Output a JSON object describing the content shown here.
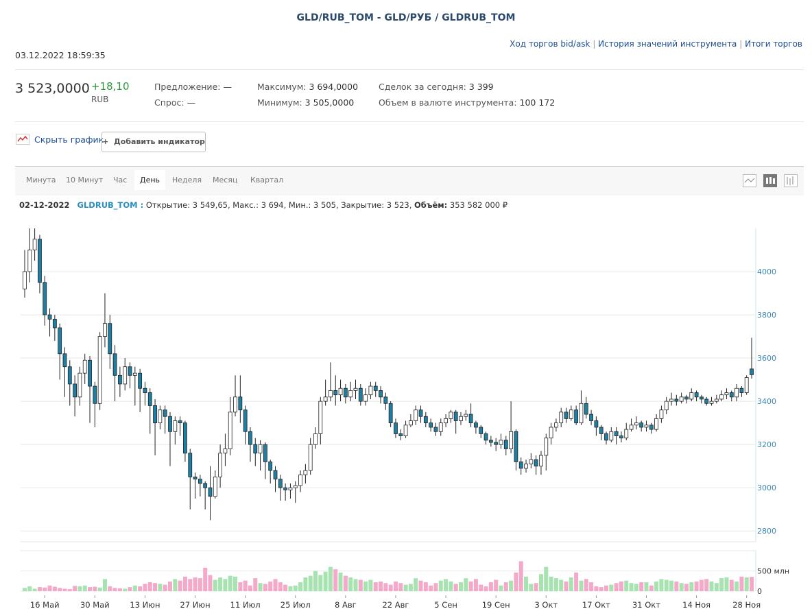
{
  "header": {
    "title": "GLD/RUB_TOM - GLD/РУБ / GLDRUB_TOM",
    "links": [
      "Ход торгов bid/ask",
      "История значений инструмента",
      "Итоги торгов"
    ],
    "timestamp": "03.12.2022 18:59:35"
  },
  "quote": {
    "price": "3 523,0000",
    "change": "+18,10",
    "currency": "RUB",
    "stats": [
      {
        "label": "Предложение:",
        "value": "—"
      },
      {
        "label": "Спрос:",
        "value": "—"
      },
      {
        "label": "Максимум:",
        "value": "3 694,0000"
      },
      {
        "label": "Минимум:",
        "value": "3 505,0000"
      },
      {
        "label": "Сделок за сегодня:",
        "value": "3 399"
      },
      {
        "label": "Объем в валюте инструмента:",
        "value": "100 172"
      }
    ]
  },
  "toolbar": {
    "hide_chart": "Скрыть график",
    "add_indicator": "Добавить индикатор"
  },
  "tabs": {
    "items": [
      "Минута",
      "10 Минут",
      "Час",
      "День",
      "Неделя",
      "Месяц",
      "Квартал"
    ],
    "active": 3
  },
  "info": {
    "date": "02-12-2022",
    "ticker": "GLDRUB_TOM :",
    "text": "Открытие: 3 549,65, Макс.: 3 694, Мин.: 3 505, Закрытие: 3 523,",
    "volume_label": "Объём:",
    "volume": "353 582 000 ₽"
  },
  "chart_data": {
    "type": "candlestick",
    "categories": [
      null,
      null,
      null,
      null,
      "16 Май",
      null,
      null,
      null,
      null,
      null,
      null,
      null,
      null,
      null,
      "30 Май",
      null,
      null,
      null,
      null,
      null,
      null,
      null,
      null,
      null,
      "13 Июн",
      null,
      null,
      null,
      null,
      null,
      null,
      null,
      null,
      null,
      "27 Июн",
      null,
      null,
      null,
      null,
      null,
      null,
      null,
      null,
      null,
      "11 Июл",
      null,
      null,
      null,
      null,
      null,
      null,
      null,
      null,
      null,
      "25 Июл",
      null,
      null,
      null,
      null,
      null,
      null,
      null,
      null,
      null,
      "8 Авг",
      null,
      null,
      null,
      null,
      null,
      null,
      null,
      null,
      null,
      "22 Авг",
      null,
      null,
      null,
      null,
      null,
      null,
      null,
      null,
      null,
      "5 Сен",
      null,
      null,
      null,
      null,
      null,
      null,
      null,
      null,
      null,
      "19 Сен",
      null,
      null,
      null,
      null,
      null,
      null,
      null,
      null,
      null,
      "3 Окт",
      null,
      null,
      null,
      null,
      null,
      null,
      null,
      null,
      null,
      "17 Окт",
      null,
      null,
      null,
      null,
      null,
      null,
      null,
      null,
      null,
      "31 Окт",
      null,
      null,
      null,
      null,
      null,
      null,
      null,
      null,
      null,
      "14 Ноя",
      null,
      null,
      null,
      null,
      null,
      null,
      null,
      null,
      null,
      "28 Ноя",
      null
    ],
    "open": [
      3920,
      4000,
      4100,
      4150,
      3950,
      3800,
      3780,
      3740,
      3620,
      3560,
      3480,
      3420,
      3530,
      3590,
      3470,
      3390,
      3700,
      3760,
      3620,
      3520,
      3480,
      3560,
      3520,
      3530,
      3460,
      3440,
      3380,
      3300,
      3360,
      3330,
      3260,
      3310,
      3300,
      3160,
      3050,
      3040,
      3020,
      3000,
      2960,
      3050,
      3160,
      3180,
      3350,
      3420,
      3360,
      3260,
      3200,
      3160,
      3200,
      3120,
      3080,
      3040,
      3000,
      2990,
      3000,
      3010,
      3060,
      3080,
      3200,
      3250,
      3400,
      3420,
      3450,
      3430,
      3460,
      3420,
      3450,
      3460,
      3400,
      3430,
      3470,
      3450,
      3420,
      3390,
      3300,
      3250,
      3240,
      3290,
      3310,
      3360,
      3330,
      3300,
      3280,
      3260,
      3300,
      3320,
      3350,
      3310,
      3330,
      3340,
      3300,
      3280,
      3250,
      3220,
      3210,
      3200,
      3220,
      3180,
      3260,
      3120,
      3090,
      3110,
      3130,
      3100,
      3150,
      3230,
      3280,
      3300,
      3350,
      3320,
      3360,
      3300,
      3390,
      3340,
      3310,
      3280,
      3250,
      3220,
      3260,
      3240,
      3230,
      3270,
      3290,
      3300,
      3280,
      3290,
      3270,
      3320,
      3360,
      3400,
      3410,
      3400,
      3420,
      3410,
      3440,
      3420,
      3410,
      3390,
      3400,
      3410,
      3430,
      3440,
      3420,
      3460,
      3440,
      3549.65
    ],
    "high": [
      4100,
      4200,
      4200,
      4170,
      3980,
      3830,
      3800,
      3760,
      3650,
      3590,
      3520,
      3560,
      3620,
      3610,
      3490,
      3720,
      3900,
      3800,
      3660,
      3560,
      3600,
      3580,
      3560,
      3550,
      3490,
      3460,
      3410,
      3380,
      3380,
      3350,
      3330,
      3330,
      3310,
      3180,
      3070,
      3060,
      3030,
      3100,
      3080,
      3200,
      3250,
      3420,
      3520,
      3520,
      3380,
      3280,
      3230,
      3220,
      3210,
      3130,
      3100,
      3060,
      3020,
      3020,
      3030,
      3080,
      3110,
      3230,
      3280,
      3420,
      3500,
      3580,
      3520,
      3500,
      3480,
      3490,
      3500,
      3480,
      3460,
      3490,
      3490,
      3470,
      3440,
      3400,
      3320,
      3270,
      3310,
      3340,
      3380,
      3380,
      3350,
      3320,
      3300,
      3320,
      3340,
      3360,
      3360,
      3350,
      3360,
      3390,
      3310,
      3290,
      3260,
      3240,
      3230,
      3250,
      3240,
      3400,
      3270,
      3140,
      3130,
      3160,
      3150,
      3170,
      3250,
      3300,
      3320,
      3370,
      3370,
      3380,
      3380,
      3450,
      3420,
      3360,
      3330,
      3290,
      3260,
      3280,
      3280,
      3260,
      3300,
      3320,
      3330,
      3310,
      3310,
      3300,
      3340,
      3380,
      3420,
      3440,
      3430,
      3440,
      3430,
      3460,
      3450,
      3430,
      3420,
      3420,
      3430,
      3450,
      3460,
      3450,
      3480,
      3470,
      3520,
      3694
    ],
    "low": [
      3880,
      3950,
      4050,
      3900,
      3750,
      3700,
      3680,
      3500,
      3420,
      3380,
      3330,
      3380,
      3480,
      3300,
      3280,
      3360,
      3650,
      3550,
      3400,
      3420,
      3450,
      3460,
      3380,
      3350,
      3380,
      3250,
      3150,
      3270,
      3250,
      3100,
      3200,
      3240,
      3120,
      2900,
      2950,
      2960,
      2900,
      2850,
      2950,
      3000,
      3100,
      3150,
      3330,
      3300,
      3200,
      3120,
      3100,
      3080,
      3040,
      3020,
      2980,
      2940,
      2940,
      2950,
      2930,
      2980,
      3020,
      3060,
      3180,
      3200,
      3380,
      3400,
      3380,
      3400,
      3390,
      3400,
      3410,
      3380,
      3380,
      3410,
      3420,
      3390,
      3360,
      3280,
      3230,
      3220,
      3230,
      3280,
      3290,
      3300,
      3280,
      3260,
      3240,
      3240,
      3280,
      3300,
      3250,
      3290,
      3310,
      3280,
      3250,
      3230,
      3200,
      3190,
      3170,
      3180,
      3150,
      3160,
      3080,
      3060,
      3070,
      3090,
      3060,
      3060,
      3080,
      3200,
      3260,
      3280,
      3300,
      3310,
      3290,
      3290,
      3320,
      3290,
      3240,
      3220,
      3200,
      3210,
      3200,
      3210,
      3220,
      3260,
      3270,
      3260,
      3260,
      3250,
      3260,
      3300,
      3340,
      3380,
      3380,
      3390,
      3390,
      3400,
      3400,
      3390,
      3380,
      3380,
      3390,
      3400,
      3410,
      3400,
      3400,
      3420,
      3430,
      3505
    ],
    "close": [
      4000,
      4100,
      4150,
      3950,
      3800,
      3780,
      3740,
      3620,
      3560,
      3480,
      3420,
      3530,
      3590,
      3470,
      3390,
      3700,
      3760,
      3620,
      3520,
      3480,
      3560,
      3520,
      3530,
      3460,
      3440,
      3380,
      3300,
      3360,
      3330,
      3260,
      3310,
      3300,
      3160,
      3050,
      3040,
      3020,
      3000,
      2960,
      3050,
      3160,
      3180,
      3350,
      3420,
      3360,
      3260,
      3200,
      3160,
      3200,
      3120,
      3080,
      3040,
      3000,
      2990,
      3000,
      3010,
      3060,
      3080,
      3200,
      3250,
      3400,
      3420,
      3450,
      3430,
      3460,
      3420,
      3450,
      3460,
      3400,
      3430,
      3470,
      3450,
      3420,
      3390,
      3300,
      3250,
      3240,
      3290,
      3310,
      3360,
      3330,
      3300,
      3280,
      3260,
      3300,
      3320,
      3350,
      3310,
      3330,
      3340,
      3300,
      3280,
      3250,
      3220,
      3210,
      3200,
      3220,
      3180,
      3260,
      3120,
      3090,
      3110,
      3130,
      3100,
      3150,
      3230,
      3280,
      3300,
      3350,
      3320,
      3360,
      3300,
      3390,
      3340,
      3310,
      3280,
      3250,
      3220,
      3260,
      3240,
      3230,
      3270,
      3290,
      3300,
      3280,
      3290,
      3270,
      3320,
      3360,
      3400,
      3410,
      3400,
      3420,
      3410,
      3440,
      3420,
      3410,
      3390,
      3400,
      3410,
      3430,
      3440,
      3420,
      3460,
      3440,
      3510,
      3523
    ],
    "ylim": [
      2750,
      4200
    ],
    "yticks": [
      2800,
      3000,
      3200,
      3400,
      3600,
      3800,
      4000
    ],
    "grid": true,
    "up_color": "#ffffff",
    "down_color": "#1f7fa3",
    "volume": {
      "values": [
        80,
        120,
        60,
        100,
        90,
        140,
        110,
        80,
        60,
        50,
        130,
        120,
        140,
        100,
        110,
        90,
        300,
        120,
        80,
        70,
        60,
        100,
        140,
        120,
        180,
        220,
        200,
        180,
        160,
        240,
        300,
        260,
        360,
        300,
        340,
        320,
        580,
        400,
        280,
        340,
        300,
        380,
        360,
        220,
        260,
        140,
        320,
        200,
        180,
        240,
        300,
        220,
        160,
        120,
        140,
        220,
        340,
        380,
        500,
        400,
        480,
        600,
        540,
        460,
        380,
        340,
        300,
        280,
        240,
        280,
        220,
        240,
        200,
        160,
        240,
        200,
        160,
        180,
        320,
        260,
        220,
        140,
        200,
        260,
        300,
        240,
        180,
        220,
        320,
        240,
        300,
        160,
        120,
        220,
        280,
        140,
        220,
        260,
        460,
        740,
        360,
        180,
        200,
        420,
        600,
        360,
        320,
        280,
        240,
        340,
        460,
        260,
        300,
        220,
        120,
        100,
        140,
        160,
        200,
        240,
        260,
        200,
        180,
        220,
        220,
        140,
        240,
        300,
        280,
        260,
        240,
        200,
        180,
        220,
        240,
        280,
        300,
        240,
        200,
        320,
        340,
        280,
        240,
        360,
        340,
        354
      ],
      "ylim": [
        0,
        1000
      ],
      "yticks": [
        0,
        {
          "value": 500,
          "label": "500 млн"
        }
      ],
      "up_color": "#a6e3b0",
      "down_color": "#f5a9c9"
    }
  }
}
